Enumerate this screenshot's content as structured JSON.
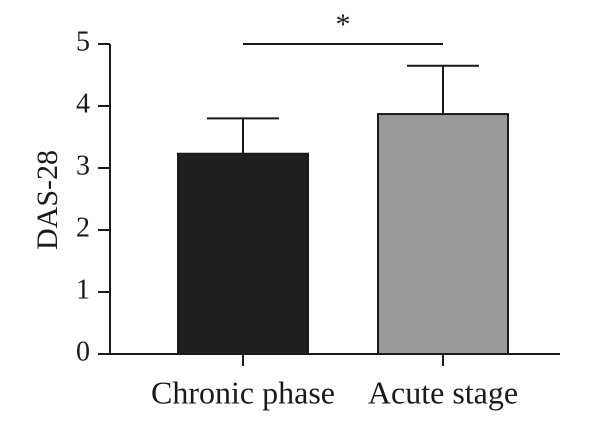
{
  "chart_data": {
    "type": "bar",
    "title": "",
    "xlabel": "",
    "ylabel": "DAS-28",
    "ylim": [
      0,
      5
    ],
    "yticks": [
      0,
      1,
      2,
      3,
      4,
      5
    ],
    "grid": false,
    "categories": [
      "Chronic phase",
      "Acute stage"
    ],
    "values": [
      3.23,
      3.87
    ],
    "error_upper": [
      0.57,
      0.78
    ],
    "bar_colors": [
      "#1f1f1f",
      "#9a9a9a"
    ],
    "significance": {
      "between": [
        0,
        1
      ],
      "label": "*"
    }
  }
}
